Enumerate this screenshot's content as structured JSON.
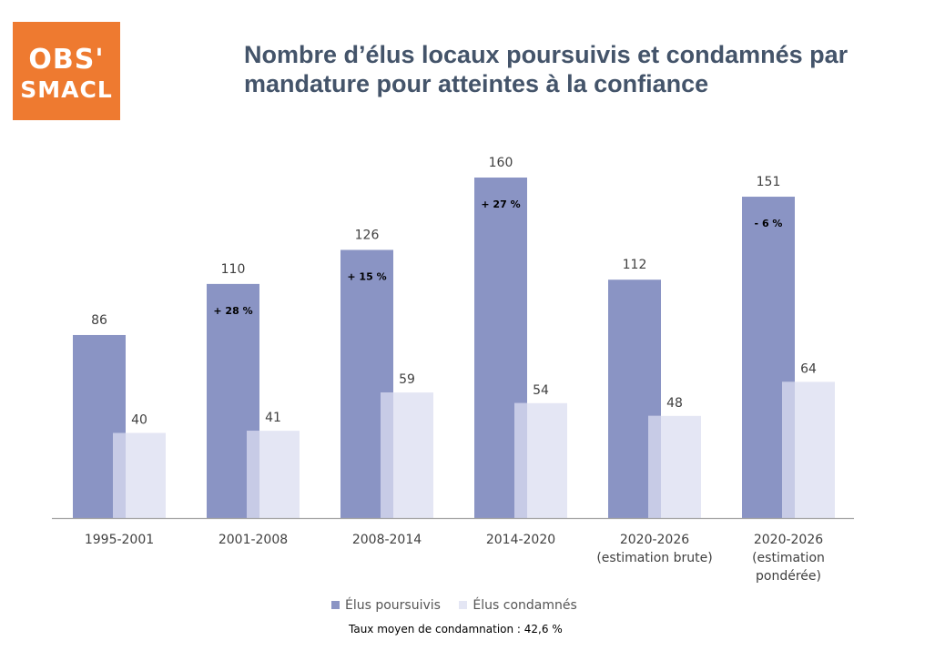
{
  "logo": {
    "line1": "OBS'",
    "line2": "SMACL"
  },
  "colors": {
    "accent": "#ee7a30",
    "poursuivis": "#8a94c4",
    "condamnes": "#e4e6f4",
    "condamnes_edge": "#c7cbe6",
    "title": "#44546a"
  },
  "chart_data": {
    "type": "bar",
    "title": "Nombre d’élus locaux poursuivis et condamnés par mandature pour atteintes à la confiance",
    "categories": [
      [
        "1995-2001"
      ],
      [
        "2001-2008"
      ],
      [
        "2008-2014"
      ],
      [
        "2014-2020"
      ],
      [
        "2020-2026",
        "(estimation brute)"
      ],
      [
        "2020-2026",
        "(estimation",
        "pondérée)"
      ]
    ],
    "series": [
      {
        "name": "Élus poursuivis",
        "values": [
          86,
          110,
          126,
          160,
          112,
          151
        ]
      },
      {
        "name": "Élus condamnés",
        "values": [
          40,
          41,
          59,
          54,
          48,
          64
        ]
      }
    ],
    "annotations": [
      "",
      "+ 28 %",
      "+ 15 %",
      "+ 27 %",
      "",
      "- 6 %"
    ],
    "ylim": [
      0,
      160
    ],
    "grid": false,
    "legend": "bottom",
    "note": "Taux moyen de condamnation : 42,6 %"
  }
}
